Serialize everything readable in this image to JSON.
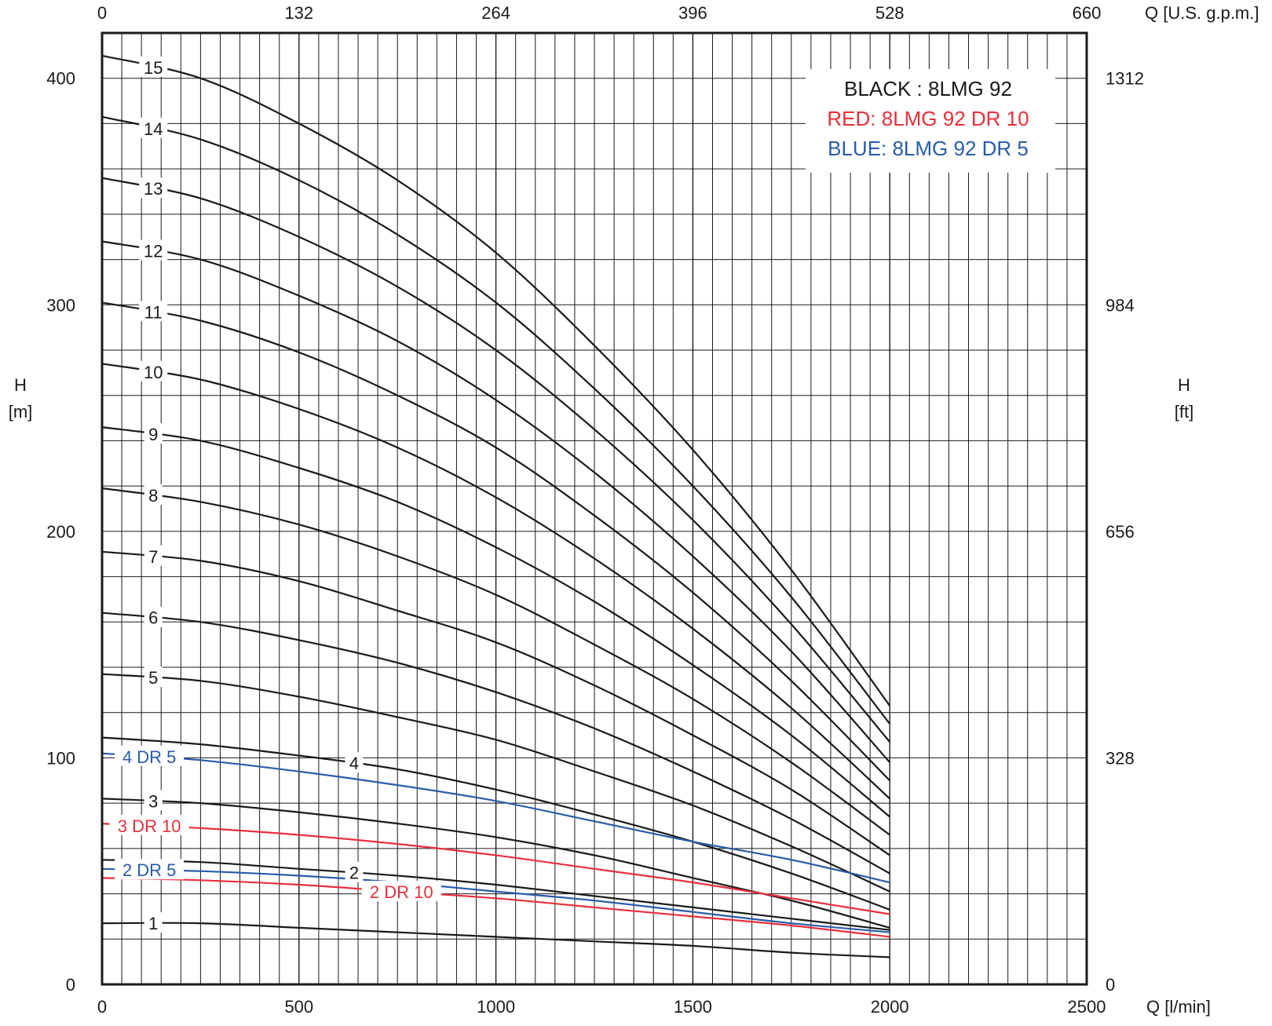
{
  "chart_data": {
    "type": "line",
    "x_axis_bottom": {
      "label": "Q [l/min]",
      "range": [
        0,
        2500
      ],
      "ticks": [
        "0",
        "500",
        "1000",
        "1500",
        "2000",
        "2500"
      ]
    },
    "x_axis_top": {
      "label": "Q [U.S. g.p.m.]",
      "ticks": [
        "0",
        "132",
        "264",
        "396",
        "528",
        "660"
      ]
    },
    "y_axis_left": {
      "label": "H",
      "unit": "[m]",
      "range": [
        0,
        420
      ],
      "ticks": [
        "0",
        "100",
        "200",
        "300",
        "400"
      ]
    },
    "y_axis_right": {
      "label": "H",
      "unit": "[ft]",
      "ticks": [
        "0",
        "328",
        "656",
        "984",
        "1312"
      ]
    },
    "grid": true,
    "legend": {
      "position": "top-right",
      "entries": [
        {
          "text": "BLACK : 8LMG 92",
          "color": "#1a1a1a"
        },
        {
          "text": "RED: 8LMG 92 DR 10",
          "color": "#e8303b"
        },
        {
          "text": "BLUE: 8LMG 92 DR 5",
          "color": "#2a5caa"
        }
      ]
    },
    "colors": {
      "black": "#1a1a1a",
      "red": "#e8303b",
      "blue": "#2a5caa",
      "grid": "#1a1a1a"
    },
    "series": [
      {
        "name": "15",
        "color": "black",
        "label_x": 130,
        "x": [
          0,
          250,
          500,
          750,
          1000,
          1250,
          1500,
          1750,
          2000
        ],
        "y": [
          410,
          400,
          380,
          355,
          323,
          282,
          236,
          183,
          123
        ]
      },
      {
        "name": "14",
        "color": "black",
        "label_x": 130,
        "x": [
          0,
          250,
          500,
          750,
          1000,
          1250,
          1500,
          1750,
          2000
        ],
        "y": [
          383,
          373,
          355,
          331,
          301,
          263,
          220,
          171,
          115
        ]
      },
      {
        "name": "13",
        "color": "black",
        "label_x": 130,
        "x": [
          0,
          250,
          500,
          750,
          1000,
          1250,
          1500,
          1750,
          2000
        ],
        "y": [
          356,
          347,
          330,
          308,
          280,
          245,
          205,
          159,
          107
        ]
      },
      {
        "name": "12",
        "color": "black",
        "label_x": 130,
        "x": [
          0,
          250,
          500,
          750,
          1000,
          1250,
          1500,
          1750,
          2000
        ],
        "y": [
          328,
          320,
          304,
          284,
          258,
          226,
          189,
          147,
          98
        ]
      },
      {
        "name": "11",
        "color": "black",
        "label_x": 130,
        "x": [
          0,
          250,
          500,
          750,
          1000,
          1250,
          1500,
          1750,
          2000
        ],
        "y": [
          301,
          293,
          279,
          260,
          237,
          207,
          173,
          134,
          90
        ]
      },
      {
        "name": "10",
        "color": "black",
        "label_x": 130,
        "x": [
          0,
          250,
          500,
          750,
          1000,
          1250,
          1500,
          1750,
          2000
        ],
        "y": [
          274,
          267,
          254,
          237,
          215,
          188,
          157,
          122,
          82
        ]
      },
      {
        "name": "9",
        "color": "black",
        "label_x": 130,
        "x": [
          0,
          250,
          500,
          750,
          1000,
          1250,
          1500,
          1750,
          2000
        ],
        "y": [
          246,
          240,
          228,
          213,
          193,
          169,
          141,
          110,
          74
        ]
      },
      {
        "name": "8",
        "color": "black",
        "label_x": 130,
        "x": [
          0,
          250,
          500,
          750,
          1000,
          1250,
          1500,
          1750,
          2000
        ],
        "y": [
          219,
          213,
          203,
          189,
          172,
          150,
          126,
          98,
          66
        ]
      },
      {
        "name": "7",
        "color": "black",
        "label_x": 130,
        "x": [
          0,
          250,
          500,
          750,
          1000,
          1250,
          1500,
          1750,
          2000
        ],
        "y": [
          191,
          187,
          178,
          165,
          151,
          132,
          110,
          86,
          57
        ]
      },
      {
        "name": "6",
        "color": "black",
        "label_x": 130,
        "x": [
          0,
          250,
          500,
          750,
          1000,
          1250,
          1500,
          1750,
          2000
        ],
        "y": [
          164,
          160,
          152,
          142,
          129,
          113,
          94,
          73,
          49
        ]
      },
      {
        "name": "5",
        "color": "black",
        "label_x": 130,
        "x": [
          0,
          250,
          500,
          750,
          1000,
          1250,
          1500,
          1750,
          2000
        ],
        "y": [
          137,
          134,
          127,
          118,
          108,
          94,
          79,
          61,
          41
        ]
      },
      {
        "name": "4",
        "color": "black",
        "label_x": 640,
        "x": [
          0,
          250,
          500,
          750,
          1000,
          1250,
          1500,
          1750,
          2000
        ],
        "y": [
          109,
          106,
          101,
          95,
          86,
          75,
          63,
          49,
          33
        ]
      },
      {
        "name": "4 DR 5",
        "color": "blue",
        "label_x": 120,
        "x": [
          0,
          250,
          500,
          750,
          1000,
          1250,
          1500,
          1750,
          2000
        ],
        "y": [
          102,
          99,
          94,
          88,
          81,
          72,
          63,
          55,
          45
        ]
      },
      {
        "name": "3",
        "color": "black",
        "label_x": 130,
        "x": [
          0,
          250,
          500,
          750,
          1000,
          1250,
          1500,
          1750,
          2000
        ],
        "y": [
          82,
          80,
          76,
          71,
          65,
          57,
          47,
          37,
          25
        ]
      },
      {
        "name": "3 DR 10",
        "color": "red",
        "label_x": 120,
        "x": [
          0,
          250,
          500,
          750,
          1000,
          1250,
          1500,
          1750,
          2000
        ],
        "y": [
          71,
          69,
          66,
          62,
          57,
          51,
          45,
          38,
          31
        ]
      },
      {
        "name": "2",
        "color": "black",
        "label_x": 640,
        "x": [
          0,
          250,
          500,
          750,
          1000,
          1250,
          1500,
          1750,
          2000
        ],
        "y": [
          55,
          54,
          51,
          48,
          44,
          39,
          34,
          29,
          24
        ]
      },
      {
        "name": "2 DR 5",
        "color": "blue",
        "label_x": 120,
        "x": [
          0,
          250,
          500,
          750,
          1000,
          1250,
          1500,
          1750,
          2000
        ],
        "y": [
          51,
          50,
          48,
          45,
          41,
          37,
          32,
          27,
          23
        ]
      },
      {
        "name": "2 DR 10",
        "color": "red",
        "label_x": 760,
        "x": [
          0,
          250,
          500,
          750,
          1000,
          1250,
          1500,
          1750,
          2000
        ],
        "y": [
          47,
          46,
          44,
          41,
          38,
          34,
          30,
          26,
          21
        ]
      },
      {
        "name": "1",
        "color": "black",
        "label_x": 130,
        "x": [
          0,
          250,
          500,
          750,
          1000,
          1250,
          1500,
          1750,
          2000
        ],
        "y": [
          27,
          27,
          25,
          23,
          21,
          19,
          17,
          14,
          12
        ]
      }
    ]
  }
}
